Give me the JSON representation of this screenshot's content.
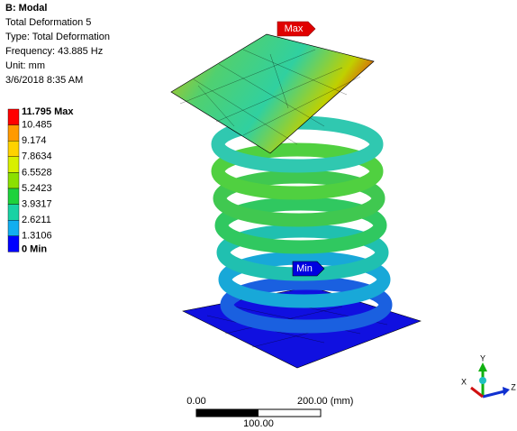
{
  "header": {
    "title": "B: Modal",
    "lines": [
      "Total Deformation 5",
      "Type: Total Deformation",
      "Frequency: 43.885 Hz",
      "Unit: mm",
      "3/6/2018 8:35 AM"
    ]
  },
  "legend": {
    "labels": [
      "11.795 Max",
      "10.485",
      "9.174",
      "7.8634",
      "6.5528",
      "5.2423",
      "3.9317",
      "2.6211",
      "1.3106",
      "0 Min"
    ],
    "colors": [
      "#ff0000",
      "#ff9a00",
      "#ffd200",
      "#d8f000",
      "#8be000",
      "#1ed23c",
      "#18d2a4",
      "#12aef0",
      "#0000ff"
    ]
  },
  "probes": {
    "max": "Max",
    "min": "Min"
  },
  "scale_bar": {
    "start": "0.00",
    "end": "200.00 (mm)",
    "middle": "100.00"
  },
  "triad": {
    "x": "X",
    "y": "Y",
    "z": "Z"
  }
}
